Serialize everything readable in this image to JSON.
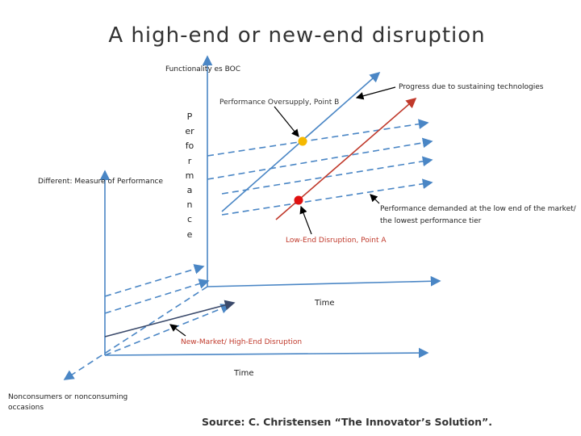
{
  "title": "A high-end or new-end disruption",
  "labels": {
    "functionality": "Functionality es BOC",
    "point_b": "Performance Oversupply, Point B",
    "progress": "Progress due to sustaining technologies",
    "vertical_axis": "Performance",
    "different": "Different: Measure of Performance",
    "demanded": [
      "Performance demanded at the low end of the market/",
      "the lowest performance tier"
    ],
    "point_a": "Low-End Disruption, Point A",
    "time_upper": "Time",
    "new_market": "New-Market/ High-End Disruption",
    "time_lower": "Time",
    "nonconsumers": [
      "Nonconsumers or nonconsuming",
      "occasions"
    ]
  },
  "source": "Source: C. Christensen “The Innovator’s Solution”."
}
